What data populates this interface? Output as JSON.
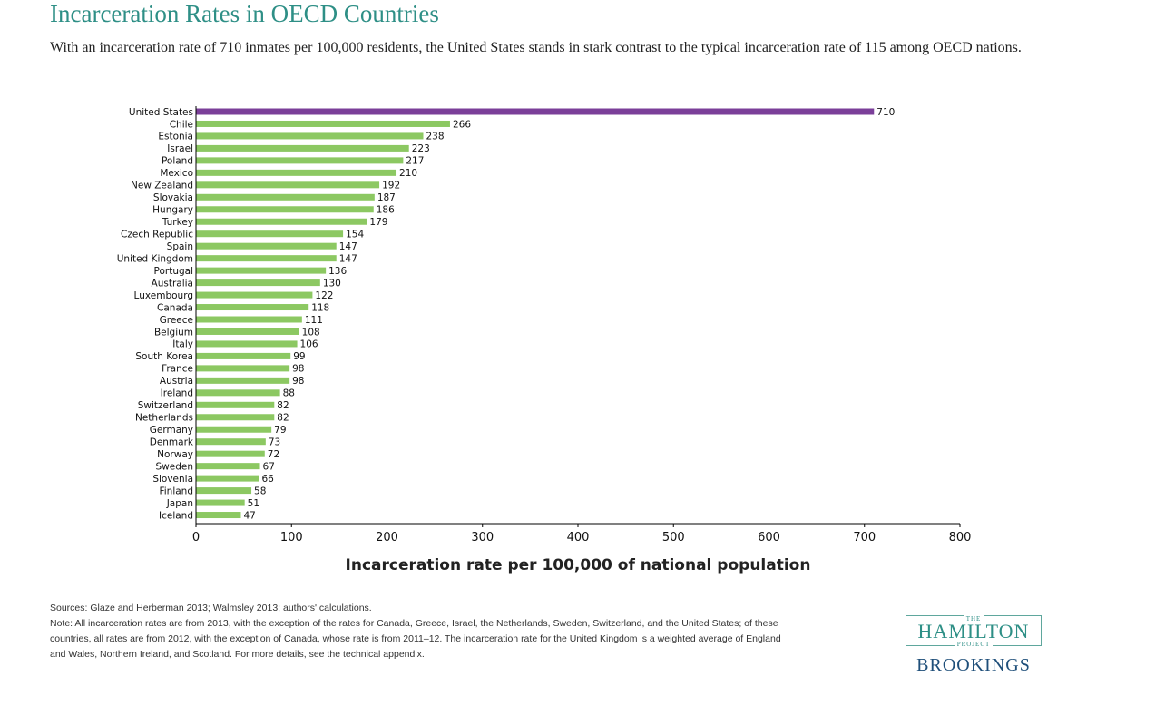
{
  "header": {
    "title": "Incarceration Rates in OECD Countries",
    "subtitle": "With an incarceration rate of 710 inmates per 100,000 residents, the United States stands in stark contrast to the typical incarceration rate of 115 among OECD nations."
  },
  "chart_data": {
    "type": "bar",
    "orientation": "horizontal",
    "xlabel": "Incarceration rate per 100,000 of national population",
    "ylabel": "",
    "xlim": [
      0,
      800
    ],
    "xticks": [
      0,
      100,
      200,
      300,
      400,
      500,
      600,
      700,
      800
    ],
    "grid": false,
    "data_labels": true,
    "highlight_category": "United States",
    "colors": {
      "highlight": "#7b3f99",
      "default": "#8cc862"
    },
    "categories": [
      "United States",
      "Chile",
      "Estonia",
      "Israel",
      "Poland",
      "Mexico",
      "New Zealand",
      "Slovakia",
      "Hungary",
      "Turkey",
      "Czech Republic",
      "Spain",
      "United Kingdom",
      "Portugal",
      "Australia",
      "Luxembourg",
      "Canada",
      "Greece",
      "Belgium",
      "Italy",
      "South Korea",
      "France",
      "Austria",
      "Ireland",
      "Switzerland",
      "Netherlands",
      "Germany",
      "Denmark",
      "Norway",
      "Sweden",
      "Slovenia",
      "Finland",
      "Japan",
      "Iceland"
    ],
    "values": [
      710,
      266,
      238,
      223,
      217,
      210,
      192,
      187,
      186,
      179,
      154,
      147,
      147,
      136,
      130,
      122,
      118,
      111,
      108,
      106,
      99,
      98,
      98,
      88,
      82,
      82,
      79,
      73,
      72,
      67,
      66,
      58,
      51,
      47
    ]
  },
  "footer": {
    "sources": "Sources: Glaze and Herberman 2013; Walmsley 2013; authors' calculations.",
    "note": "Note: All incarceration rates are from 2013, with the exception of the rates for Canada, Greece, Israel, the Netherlands, Sweden, Switzerland, and the United States; of these countries, all rates are from 2012, with the exception of Canada, whose rate is from 2011–12. The incarceration rate for the United Kingdom is a weighted average of England and Wales, Northern Ireland, and Scotland. For more details, see the technical appendix."
  },
  "logo": {
    "the": "THE",
    "hamilton": "HAMILTON",
    "project": "PROJECT",
    "brookings": "BROOKINGS"
  }
}
